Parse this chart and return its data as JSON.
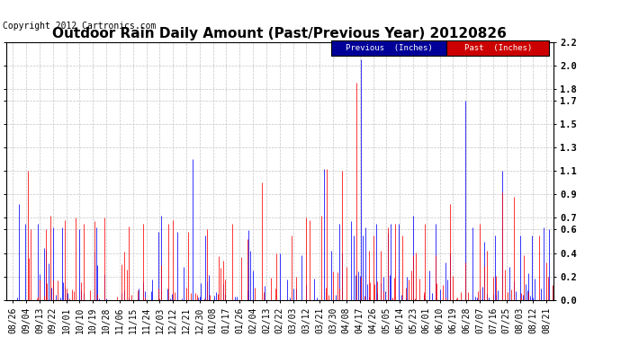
{
  "title": "Outdoor Rain Daily Amount (Past/Previous Year) 20120826",
  "copyright": "Copyright 2012 Cartronics.com",
  "legend_previous": "Previous  (Inches)",
  "legend_past": "Past  (Inches)",
  "previous_color": "#0000ff",
  "past_color": "#ff0000",
  "legend_previous_bg": "#000099",
  "legend_past_bg": "#cc0000",
  "background_color": "#ffffff",
  "grid_color": "#bbbbbb",
  "ylim": [
    0.0,
    2.2
  ],
  "yticks": [
    0.0,
    0.2,
    0.4,
    0.6,
    0.7,
    0.9,
    1.1,
    1.3,
    1.5,
    1.7,
    1.8,
    2.0,
    2.2
  ],
  "x_labels": [
    "08/26",
    "09/04",
    "09/13",
    "09/22",
    "10/01",
    "10/10",
    "10/19",
    "10/28",
    "11/06",
    "11/15",
    "11/24",
    "12/03",
    "12/12",
    "12/21",
    "12/30",
    "01/08",
    "01/17",
    "01/26",
    "02/04",
    "02/13",
    "02/22",
    "03/03",
    "03/12",
    "03/21",
    "03/30",
    "04/08",
    "04/17",
    "04/26",
    "05/05",
    "05/14",
    "05/23",
    "06/01",
    "06/10",
    "06/19",
    "06/28",
    "07/07",
    "07/16",
    "07/25",
    "08/03",
    "08/12",
    "08/21"
  ],
  "title_fontsize": 11,
  "tick_fontsize": 7,
  "copyright_fontsize": 7,
  "n_days_per_tick": 9,
  "figwidth": 6.9,
  "figheight": 3.75,
  "dpi": 100
}
